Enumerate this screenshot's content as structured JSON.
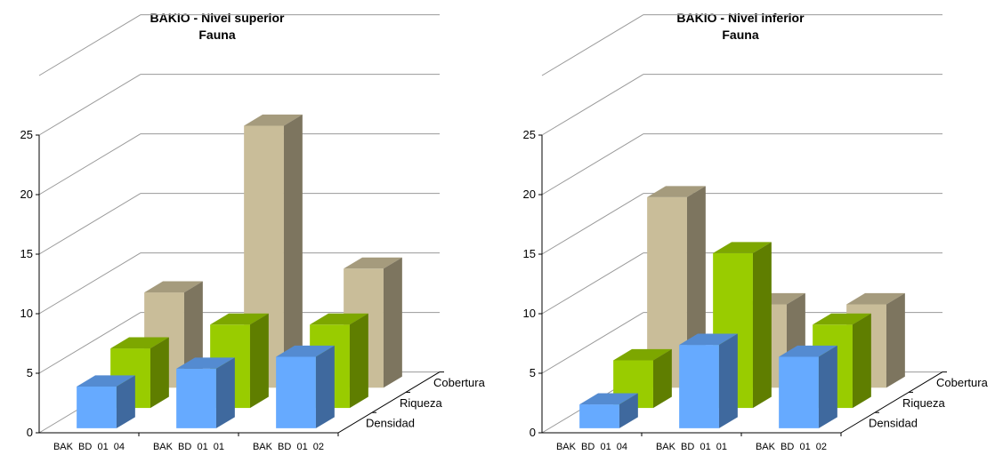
{
  "colors": {
    "Densidad": "#66aaff",
    "Riqueza": "#99cc00",
    "Cobertura": "#c9bd99"
  },
  "chart_data": [
    {
      "type": "bar",
      "title": "BAKIO - Nivel superior",
      "subtitle": "Fauna",
      "categories": [
        "BAK  BD  01  04",
        "BAK  BD  01  01",
        "BAK  BD  01  02"
      ],
      "series": [
        {
          "name": "Densidad",
          "values": [
            3.5,
            5,
            6
          ]
        },
        {
          "name": "Riqueza",
          "values": [
            5,
            7,
            7
          ]
        },
        {
          "name": "Cobertura",
          "values": [
            8,
            22,
            10
          ]
        }
      ],
      "yticks": [
        0,
        5,
        10,
        15,
        20,
        25
      ],
      "ylim": [
        0,
        25
      ],
      "grid": true
    },
    {
      "type": "bar",
      "title": "BAKIO - Nivel inferior",
      "subtitle": "Fauna",
      "categories": [
        "BAK  BD  01  04",
        "BAK  BD  01  01",
        "BAK  BD  01  02"
      ],
      "series": [
        {
          "name": "Densidad",
          "values": [
            2,
            7,
            6
          ]
        },
        {
          "name": "Riqueza",
          "values": [
            4,
            13,
            7
          ]
        },
        {
          "name": "Cobertura",
          "values": [
            16,
            7,
            7
          ]
        }
      ],
      "yticks": [
        0,
        5,
        10,
        15,
        20,
        25
      ],
      "ylim": [
        0,
        25
      ],
      "grid": true
    }
  ]
}
